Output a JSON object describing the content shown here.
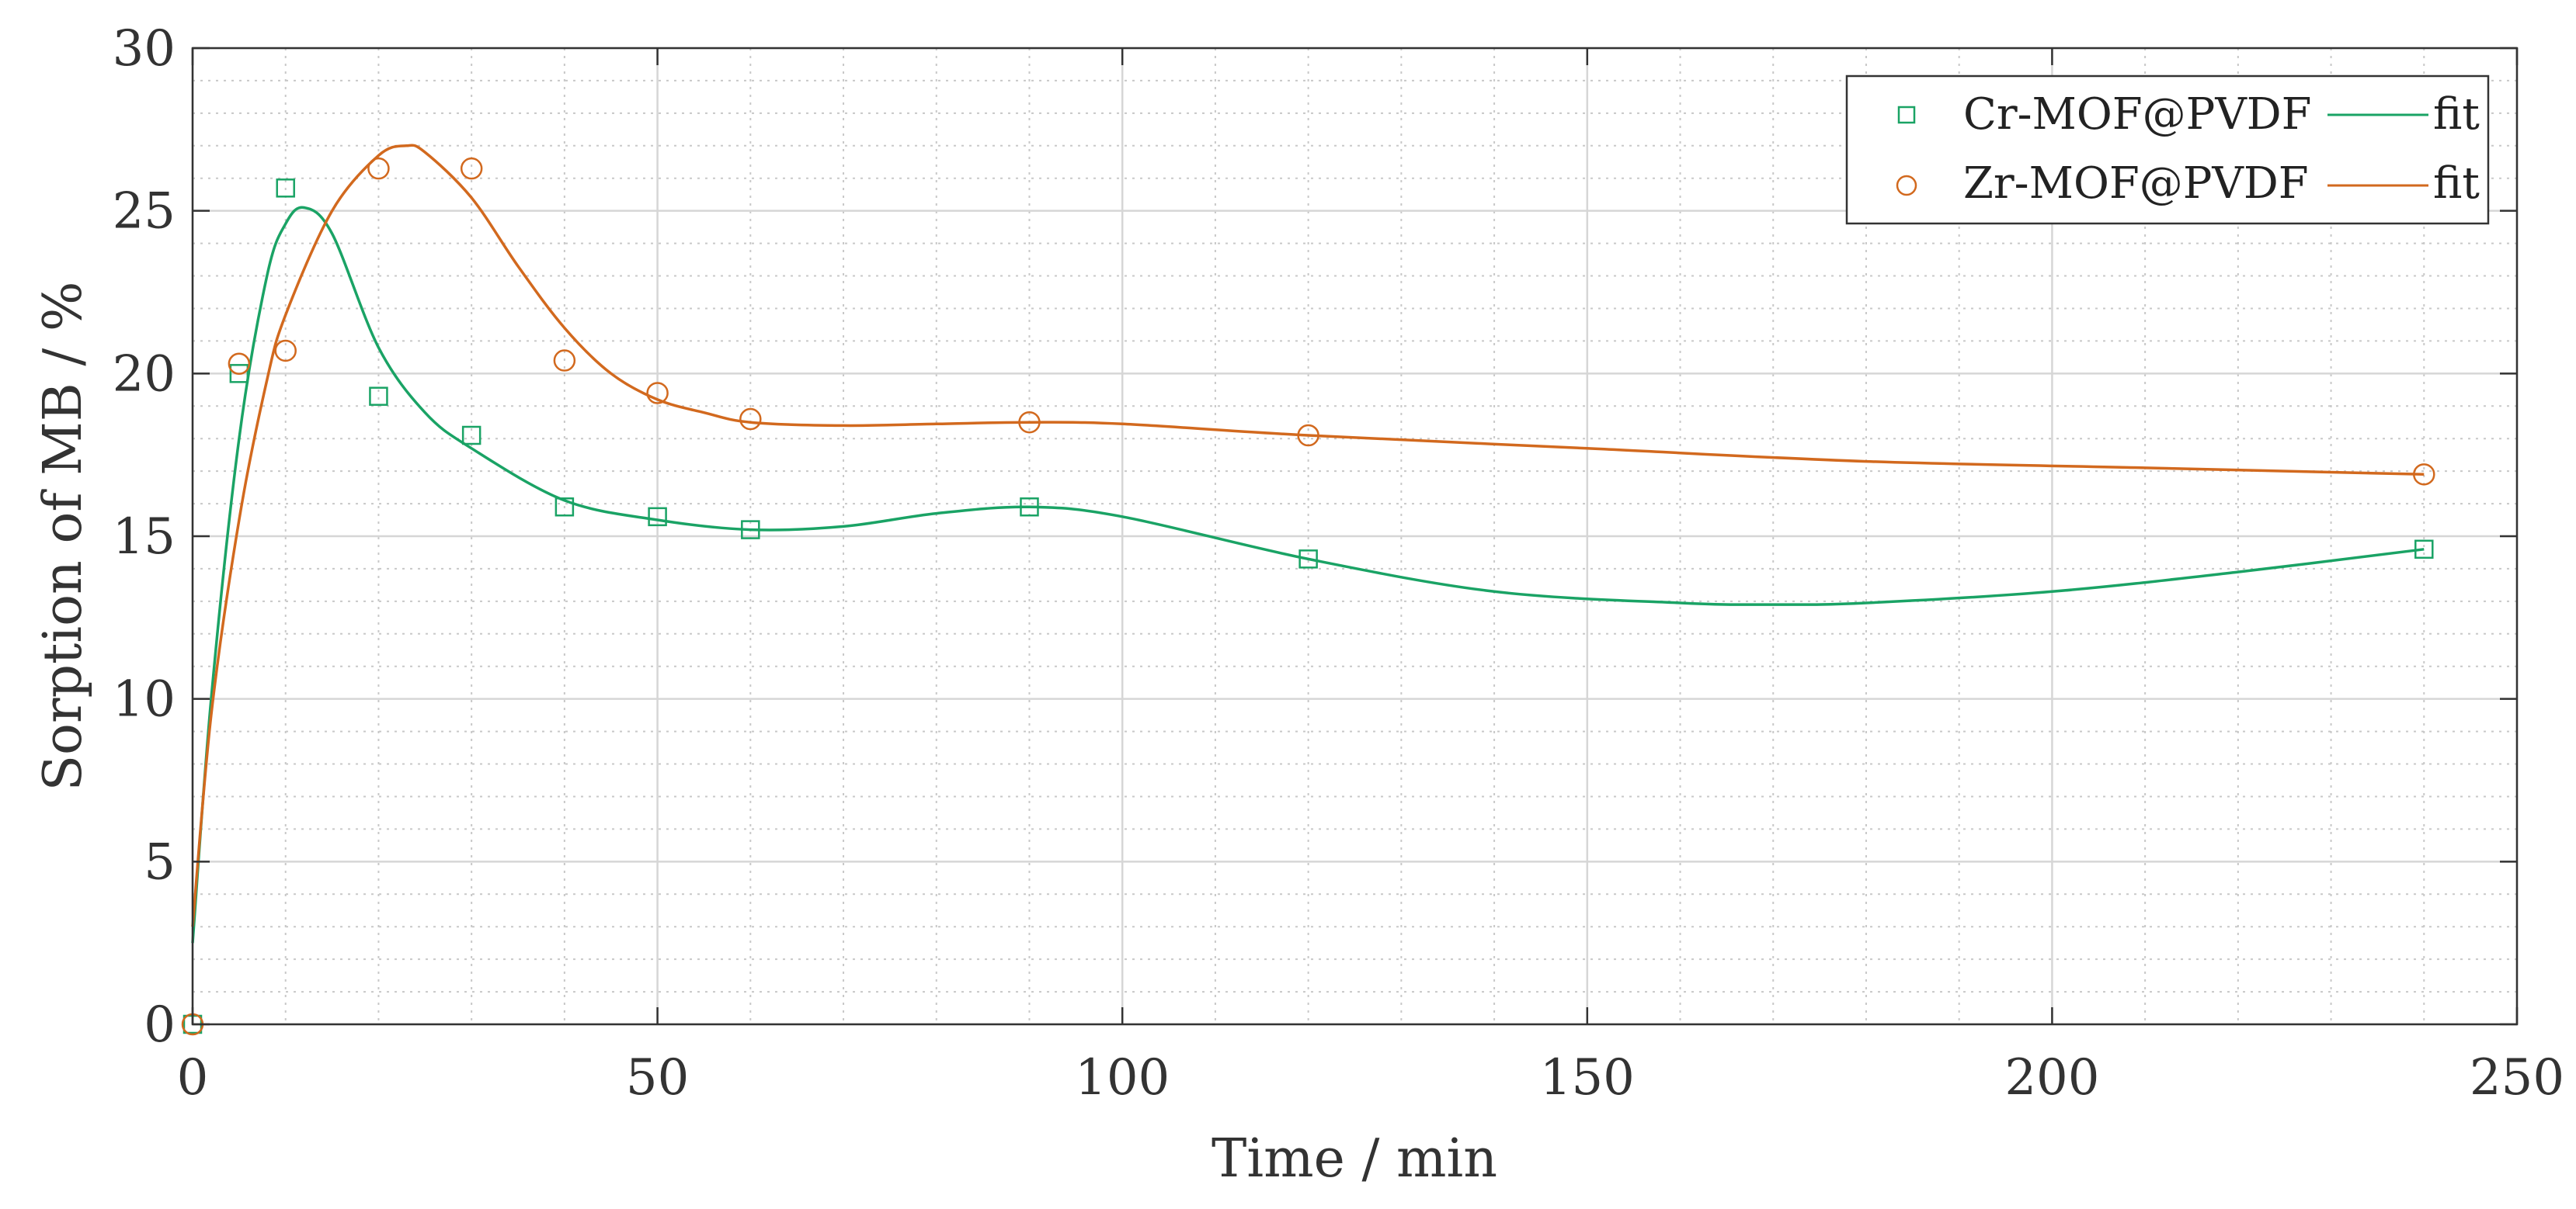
{
  "chart_data": {
    "type": "scatter",
    "xlabel": "Time / min",
    "ylabel": "Sorption of MB / %",
    "xlim": [
      0,
      250
    ],
    "ylim": [
      0,
      30
    ],
    "xticks": [
      0,
      50,
      100,
      150,
      200,
      250
    ],
    "yticks": [
      0,
      5,
      10,
      15,
      20,
      25,
      30
    ],
    "grid": true,
    "minor_grid": true,
    "legend_position": "top-right",
    "series": [
      {
        "name": "Cr-MOF@PVDF",
        "marker": "square",
        "color": "#1aa365",
        "x": [
          0,
          5,
          10,
          20,
          30,
          40,
          50,
          60,
          90,
          120,
          240
        ],
        "y": [
          0.0,
          20.0,
          25.7,
          19.3,
          18.1,
          15.9,
          15.6,
          15.2,
          15.9,
          14.3,
          14.6
        ],
        "fit_label": "fit",
        "fit_x": [
          0,
          2,
          5,
          8,
          10,
          12,
          15,
          20,
          25,
          30,
          40,
          50,
          60,
          70,
          80,
          90,
          100,
          120,
          140,
          160,
          170,
          180,
          200,
          220,
          240
        ],
        "fit_y": [
          2.5,
          10.0,
          18.0,
          23.0,
          24.6,
          25.1,
          24.3,
          20.8,
          18.8,
          17.7,
          16.1,
          15.5,
          15.2,
          15.3,
          15.7,
          15.9,
          15.6,
          14.3,
          13.3,
          12.95,
          12.9,
          12.95,
          13.3,
          13.9,
          14.6
        ]
      },
      {
        "name": "Zr-MOF@PVDF",
        "marker": "circle",
        "color": "#d2691e",
        "x": [
          0,
          5,
          10,
          20,
          30,
          40,
          50,
          60,
          90,
          120,
          240
        ],
        "y": [
          0.0,
          20.3,
          20.7,
          26.3,
          26.3,
          20.4,
          19.4,
          18.6,
          18.5,
          18.1,
          16.9
        ],
        "fit_label": "fit",
        "fit_x": [
          0,
          2,
          5,
          8,
          10,
          15,
          20,
          23,
          25,
          30,
          35,
          40,
          45,
          50,
          55,
          60,
          70,
          80,
          90,
          100,
          120,
          150,
          180,
          210,
          240
        ],
        "fit_y": [
          3.0,
          9.5,
          15.5,
          19.8,
          21.8,
          25.0,
          26.7,
          27.0,
          26.8,
          25.4,
          23.3,
          21.4,
          20.0,
          19.2,
          18.8,
          18.5,
          18.4,
          18.45,
          18.5,
          18.45,
          18.1,
          17.7,
          17.3,
          17.1,
          16.9
        ]
      }
    ]
  }
}
